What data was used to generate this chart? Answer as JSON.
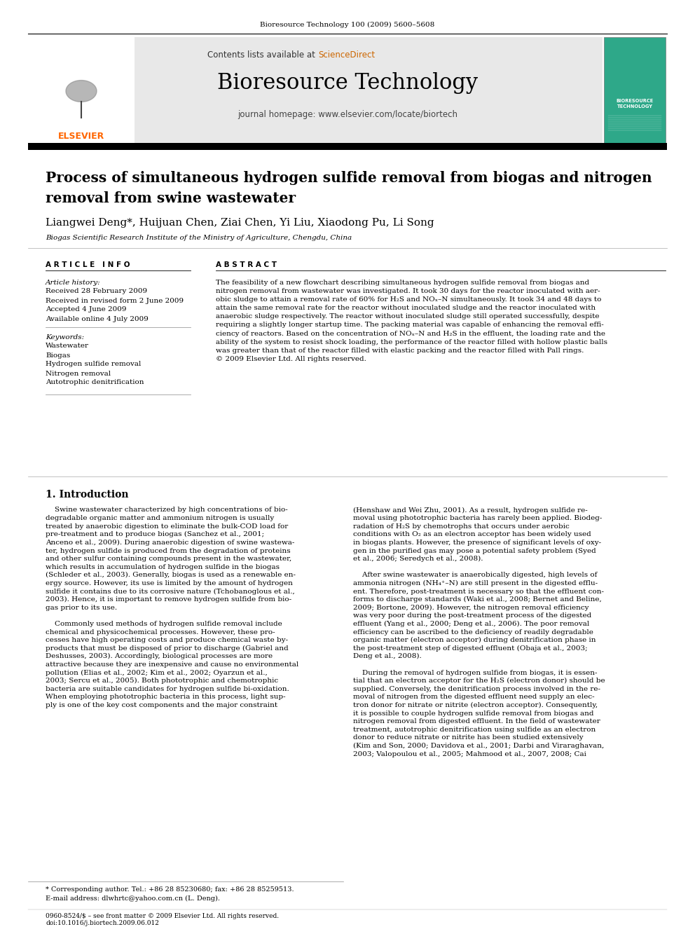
{
  "bg_color": "#ffffff",
  "top_citation": "Bioresource Technology 100 (2009) 5600–5608",
  "journal_title": "Bioresource Technology",
  "contents_line": "Contents lists available at ScienceDirect",
  "journal_homepage": "journal homepage: www.elsevier.com/locate/biortech",
  "paper_title": "Process of simultaneous hydrogen sulfide removal from biogas and nitrogen\nremoval from swine wastewater",
  "authors": "Liangwei Deng*, Huijuan Chen, Ziai Chen, Yi Liu, Xiaodong Pu, Li Song",
  "affiliation": "Biogas Scientific Research Institute of the Ministry of Agriculture, Chengdu, China",
  "article_info_header": "A R T I C L E   I N F O",
  "abstract_header": "A B S T R A C T",
  "article_history_label": "Article history:",
  "received1": "Received 28 February 2009",
  "received2": "Received in revised form 2 June 2009",
  "accepted": "Accepted 4 June 2009",
  "available": "Available online 4 July 2009",
  "keywords_label": "Keywords:",
  "keywords": [
    "Wastewater",
    "Biogas",
    "Hydrogen sulfide removal",
    "Nitrogen removal",
    "Autotrophic denitrification"
  ],
  "abstract_text": "The feasibility of a new flowchart describing simultaneous hydrogen sulfide removal from biogas and\nnitrogen removal from wastewater was investigated. It took 30 days for the reactor inoculated with aer-\nobic sludge to attain a removal rate of 60% for H₂S and NOₓ–N simultaneously. It took 34 and 48 days to\nattain the same removal rate for the reactor without inoculated sludge and the reactor inoculated with\nanaerobic sludge respectively. The reactor without inoculated sludge still operated successfully, despite\nrequiring a slightly longer startup time. The packing material was capable of enhancing the removal effi-\nciency of reactors. Based on the concentration of NOₓ–N and H₂S in the effluent, the loading rate and the\nability of the system to resist shock loading, the performance of the reactor filled with hollow plastic balls\nwas greater than that of the reactor filled with elastic packing and the reactor filled with Pall rings.\n© 2009 Elsevier Ltd. All rights reserved.",
  "section1_title": "1. Introduction",
  "intro_col1": "    Swine wastewater characterized by high concentrations of bio-\ndegradable organic matter and ammonium nitrogen is usually\ntreated by anaerobic digestion to eliminate the bulk-COD load for\npre-treatment and to produce biogas (Sanchez et al., 2001;\nAnceno et al., 2009). During anaerobic digestion of swine wastewa-\nter, hydrogen sulfide is produced from the degradation of proteins\nand other sulfur containing compounds present in the wastewater,\nwhich results in accumulation of hydrogen sulfide in the biogas\n(Schleder et al., 2003). Generally, biogas is used as a renewable en-\nergy source. However, its use is limited by the amount of hydrogen\nsulfide it contains due to its corrosive nature (Tchobanoglous et al.,\n2003). Hence, it is important to remove hydrogen sulfide from bio-\ngas prior to its use.\n \n    Commonly used methods of hydrogen sulfide removal include\nchemical and physicochemical processes. However, these pro-\ncesses have high operating costs and produce chemical waste by-\nproducts that must be disposed of prior to discharge (Gabriel and\nDeshusses, 2003). Accordingly, biological processes are more\nattractive because they are inexpensive and cause no environmental\npollution (Elias et al., 2002; Kim et al., 2002; Oyarzun et al.,\n2003; Sercu et al., 2005). Both phototrophic and chemotrophic\nbacteria are suitable candidates for hydrogen sulfide bi-oxidation.\nWhen employing phototrophic bacteria in this process, light sup-\nply is one of the key cost components and the major constraint",
  "intro_col2": "(Henshaw and Wei Zhu, 2001). As a result, hydrogen sulfide re-\nmoval using phototrophic bacteria has rarely been applied. Biodeg-\nradation of H₂S by chemotrophs that occurs under aerobic\nconditions with O₂ as an electron acceptor has been widely used\nin biogas plants. However, the presence of significant levels of oxy-\ngen in the purified gas may pose a potential safety problem (Syed\net al., 2006; Seredych et al., 2008).\n \n    After swine wastewater is anaerobically digested, high levels of\nammonia nitrogen (NH₄⁺–N) are still present in the digested efflu-\nent. Therefore, post-treatment is necessary so that the effluent con-\nforms to discharge standards (Waki et al., 2008; Bernet and Beline,\n2009; Bortone, 2009). However, the nitrogen removal efficiency\nwas very poor during the post-treatment process of the digested\neffluent (Yang et al., 2000; Deng et al., 2006). The poor removal\nefficiency can be ascribed to the deficiency of readily degradable\norganic matter (electron acceptor) during denitrification phase in\nthe post-treatment step of digested effluent (Obaja et al., 2003;\nDeng et al., 2008).\n \n    During the removal of hydrogen sulfide from biogas, it is essen-\ntial that an electron acceptor for the H₂S (electron donor) should be\nsupplied. Conversely, the denitrification process involved in the re-\nmoval of nitrogen from the digested effluent need supply an elec-\ntron donor for nitrate or nitrite (electron acceptor). Consequently,\nit is possible to couple hydrogen sulfide removal from biogas and\nnitrogen removal from digested effluent. In the field of wastewater\ntreatment, autotrophic denitrification using sulfide as an electron\ndonor to reduce nitrate or nitrite has been studied extensively\n(Kim and Son, 2000; Davidova et al., 2001; Darbi and Viraraghavan,\n2003; Valopoulou et al., 2005; Mahmood et al., 2007, 2008; Cai",
  "footnote1": "* Corresponding author. Tel.: +86 28 85230680; fax: +86 28 85259513.",
  "footnote2": "E-mail address: dlwhrtc@yahoo.com.cn (L. Deng).",
  "footer_left": "0960-8524/$ – see front matter © 2009 Elsevier Ltd. All rights reserved.",
  "footer_doi": "doi:10.1016/j.biortech.2009.06.012",
  "elsevier_color": "#ff6600",
  "sciencedirect_color": "#cc6600",
  "link_color": "#0000cc",
  "header_bg": "#e8e8e8"
}
